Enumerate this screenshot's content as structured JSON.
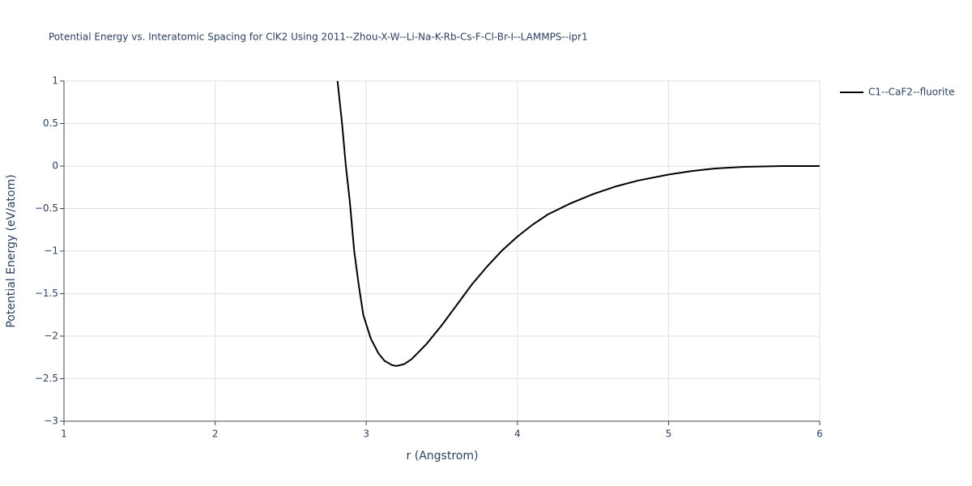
{
  "chart_data": {
    "type": "line",
    "title": "Potential Energy vs. Interatomic Spacing for ClK2 Using 2011--Zhou-X-W--Li-Na-K-Rb-Cs-F-Cl-Br-I--LAMMPS--ipr1",
    "x_label": "r (Angstrom)",
    "y_label": "Potential Energy (eV/atom)",
    "xlim": [
      1,
      6
    ],
    "xticks": [
      1,
      2,
      3,
      4,
      5,
      6
    ],
    "ylim": [
      -3,
      1
    ],
    "yticks": [
      {
        "value": -3,
        "label": "−3"
      },
      {
        "value": -2.5,
        "label": "−2.5"
      },
      {
        "value": -2,
        "label": "−2"
      },
      {
        "value": -1.5,
        "label": "−1.5"
      },
      {
        "value": -1,
        "label": "−1"
      },
      {
        "value": -0.5,
        "label": "−0.5"
      },
      0,
      0.5,
      1
    ],
    "grid": true,
    "legend_position": "top-right",
    "series": [
      {
        "name": "C1--CaF2--fluorite",
        "color": "#000000",
        "x": [
          2.81,
          2.84,
          2.865,
          2.89,
          2.92,
          2.95,
          2.98,
          3.03,
          3.08,
          3.12,
          3.17,
          3.2,
          3.25,
          3.3,
          3.35,
          3.4,
          3.5,
          3.6,
          3.7,
          3.8,
          3.9,
          4.0,
          4.1,
          4.2,
          4.35,
          4.5,
          4.65,
          4.8,
          5.0,
          5.15,
          5.3,
          5.5,
          5.75,
          6.0
        ],
        "values": [
          1.0,
          0.5,
          0.0,
          -0.4,
          -1.0,
          -1.4,
          -1.75,
          -2.03,
          -2.2,
          -2.29,
          -2.34,
          -2.35,
          -2.33,
          -2.27,
          -2.18,
          -2.09,
          -1.87,
          -1.63,
          -1.39,
          -1.18,
          -0.99,
          -0.83,
          -0.69,
          -0.57,
          -0.44,
          -0.33,
          -0.24,
          -0.17,
          -0.1,
          -0.06,
          -0.03,
          -0.01,
          0,
          0
        ]
      }
    ]
  }
}
